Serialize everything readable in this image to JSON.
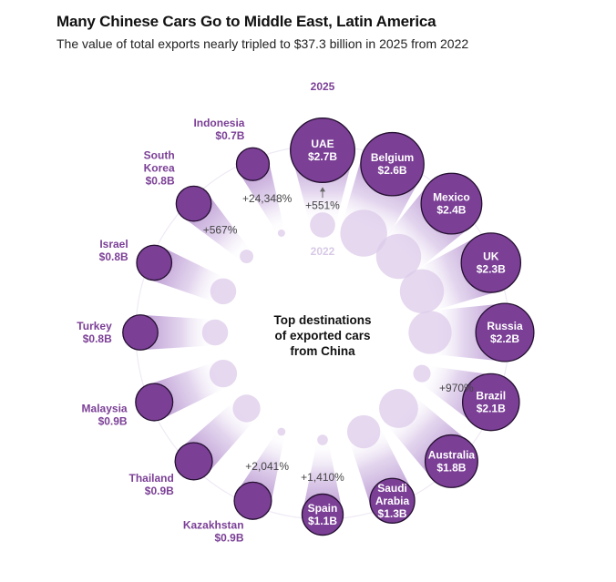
{
  "title": "Many Chinese Cars Go to Middle East, Latin America",
  "subtitle": "The value of total exports nearly tripled to $37.3 billion in 2025 from 2022",
  "colors": {
    "dark": "#7b3f96",
    "light": "#dccbea",
    "ring": "#efe9f4",
    "growthText": "#444444"
  },
  "chart_data": {
    "type": "radial-bubble",
    "title": "Top destinations of exported cars from China",
    "center_label": [
      "Top destinations",
      "of exported cars",
      "from China"
    ],
    "year_start": "2022",
    "year_end": "2025",
    "unit": "$ billion",
    "points": [
      {
        "name": "UAE",
        "name_lines": [
          "UAE"
        ],
        "value_2025": 2.7,
        "value_label": "$2.7B",
        "growth": "+551%",
        "label_inside": true
      },
      {
        "name": "Belgium",
        "name_lines": [
          "Belgium"
        ],
        "value_2025": 2.6,
        "value_label": "$2.6B",
        "growth": "",
        "label_inside": true
      },
      {
        "name": "Mexico",
        "name_lines": [
          "Mexico"
        ],
        "value_2025": 2.4,
        "value_label": "$2.4B",
        "growth": "",
        "label_inside": true
      },
      {
        "name": "UK",
        "name_lines": [
          "UK"
        ],
        "value_2025": 2.3,
        "value_label": "$2.3B",
        "growth": "",
        "label_inside": true
      },
      {
        "name": "Russia",
        "name_lines": [
          "Russia"
        ],
        "value_2025": 2.2,
        "value_label": "$2.2B",
        "growth": "",
        "label_inside": true
      },
      {
        "name": "Brazil",
        "name_lines": [
          "Brazil"
        ],
        "value_2025": 2.1,
        "value_label": "$2.1B",
        "growth": "+970%",
        "label_inside": true
      },
      {
        "name": "Australia",
        "name_lines": [
          "Australia"
        ],
        "value_2025": 1.8,
        "value_label": "$1.8B",
        "growth": "",
        "label_inside": true
      },
      {
        "name": "Saudi Arabia",
        "name_lines": [
          "Saudi",
          "Arabia"
        ],
        "value_2025": 1.3,
        "value_label": "$1.3B",
        "growth": "",
        "label_inside": true
      },
      {
        "name": "Spain",
        "name_lines": [
          "Spain"
        ],
        "value_2025": 1.1,
        "value_label": "$1.1B",
        "growth": "+1,410%",
        "label_inside": true
      },
      {
        "name": "Kazakhstan",
        "name_lines": [
          "Kazakhstan"
        ],
        "value_2025": 0.9,
        "value_label": "$0.9B",
        "growth": "+2,041%",
        "label_inside": false
      },
      {
        "name": "Thailand",
        "name_lines": [
          "Thailand"
        ],
        "value_2025": 0.9,
        "value_label": "$0.9B",
        "growth": "",
        "label_inside": false
      },
      {
        "name": "Malaysia",
        "name_lines": [
          "Malaysia"
        ],
        "value_2025": 0.9,
        "value_label": "$0.9B",
        "growth": "",
        "label_inside": false
      },
      {
        "name": "Turkey",
        "name_lines": [
          "Turkey"
        ],
        "value_2025": 0.8,
        "value_label": "$0.8B",
        "growth": "",
        "label_inside": false
      },
      {
        "name": "Israel",
        "name_lines": [
          "Israel"
        ],
        "value_2025": 0.8,
        "value_label": "$0.8B",
        "growth": "",
        "label_inside": false
      },
      {
        "name": "South Korea",
        "name_lines": [
          "South",
          "Korea"
        ],
        "value_2025": 0.8,
        "value_label": "$0.8B",
        "growth": "+567%",
        "label_inside": false
      },
      {
        "name": "Indonesia",
        "name_lines": [
          "Indonesia"
        ],
        "value_2025": 0.7,
        "value_label": "$0.7B",
        "growth": "+24,348%",
        "label_inside": false
      }
    ]
  }
}
